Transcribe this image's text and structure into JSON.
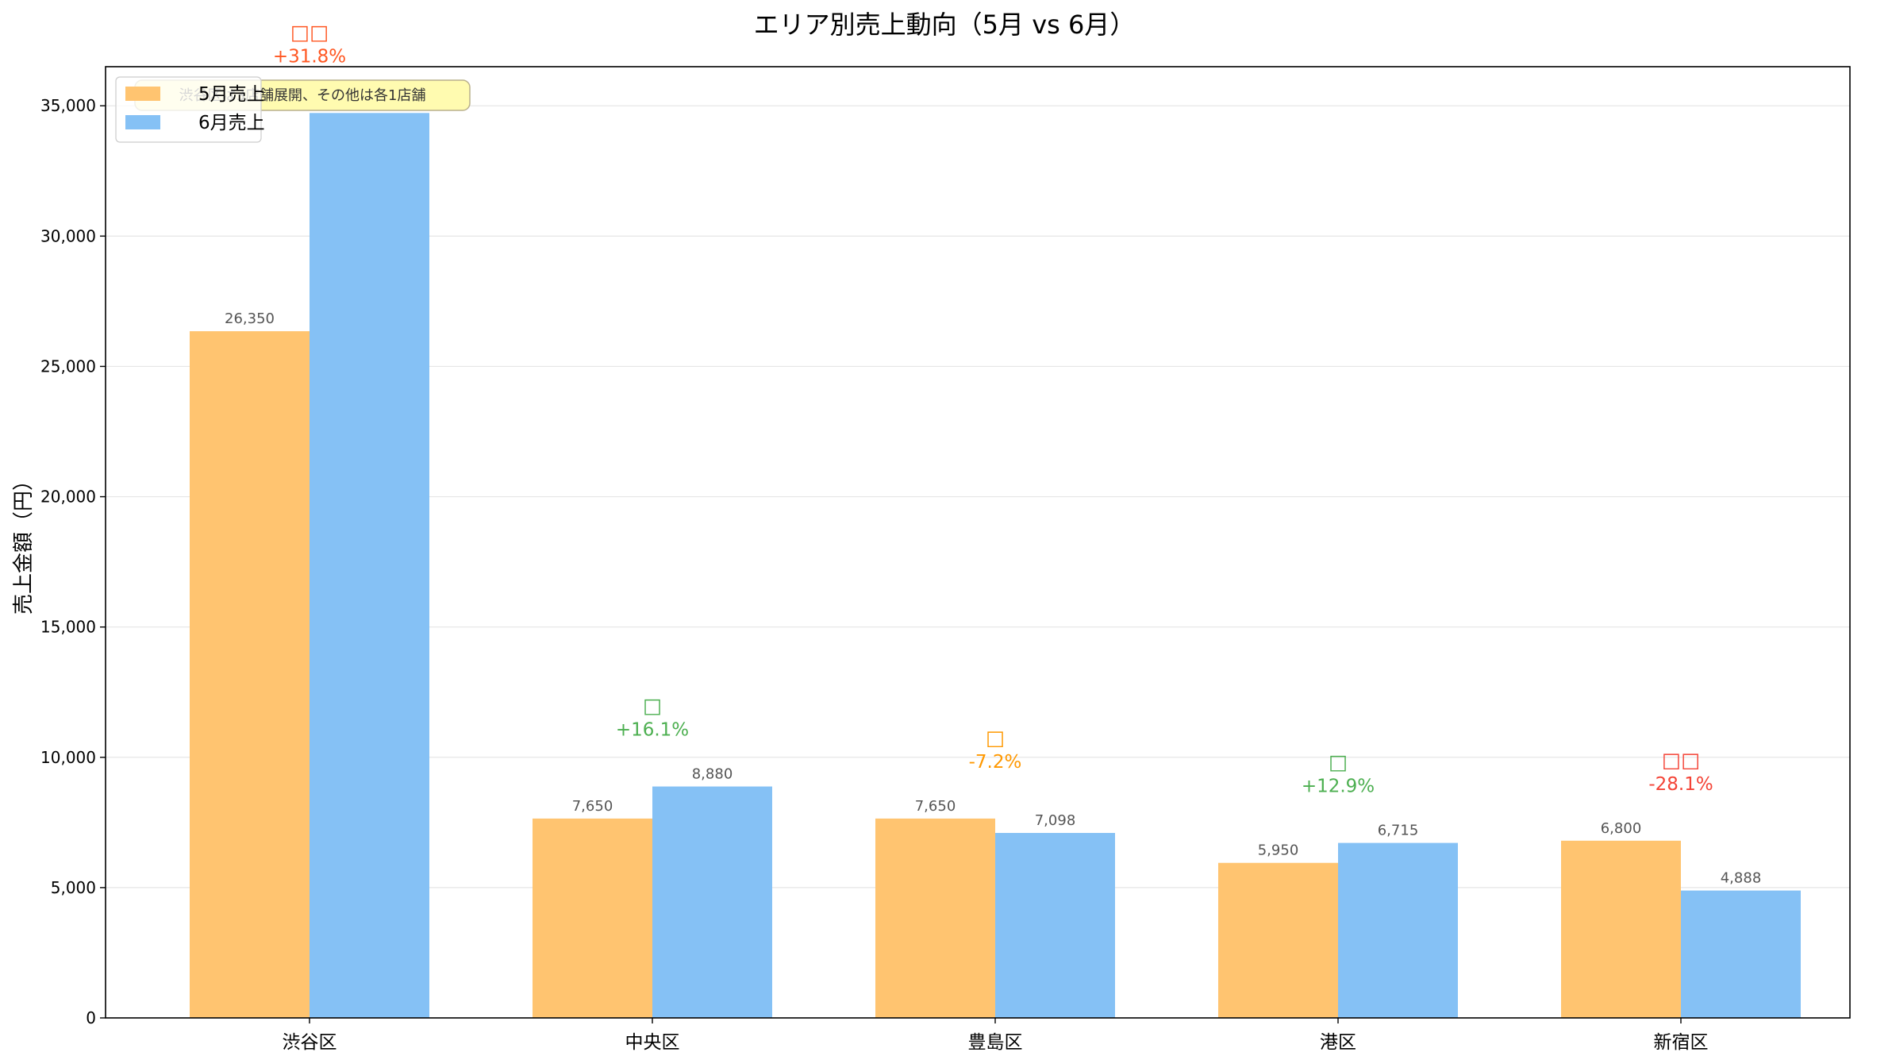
{
  "chart_data": {
    "type": "bar",
    "title": "エリア別売上動向（5月 vs 6月）",
    "ylabel": "売上金額（円）",
    "xlabel": "",
    "ylim": [
      0,
      36500
    ],
    "yticks": [
      0,
      5000,
      10000,
      15000,
      20000,
      25000,
      30000,
      35000
    ],
    "ytick_labels": [
      "0",
      "5,000",
      "10,000",
      "15,000",
      "20,000",
      "25,000",
      "30,000",
      "35,000"
    ],
    "grid": "y",
    "legend_position": "top-left",
    "categories": [
      "渋谷区",
      "中央区",
      "豊島区",
      "港区",
      "新宿区"
    ],
    "series": [
      {
        "name": "5月売上",
        "color": "#ffc470",
        "values": [
          26350,
          7650,
          7650,
          5950,
          6800
        ],
        "labels": [
          "26,350",
          "7,650",
          "7,650",
          "5,950",
          "6,800"
        ]
      },
      {
        "name": "6月売上",
        "color": "#85c1f5",
        "values": [
          34724,
          8880,
          7098,
          6715,
          4888
        ],
        "labels": [
          "34,724",
          "8,880",
          "7,098",
          "6,715",
          "4,888"
        ]
      }
    ],
    "changes": [
      {
        "label": "+31.8%",
        "symbol": "☐☐",
        "color": "#ff5722"
      },
      {
        "label": "+16.1%",
        "symbol": "☐",
        "color": "#4caf50"
      },
      {
        "label": "-7.2%",
        "symbol": "☐",
        "color": "#ff9800"
      },
      {
        "label": "+12.9%",
        "symbol": "☐",
        "color": "#4caf50"
      },
      {
        "label": "-28.1%",
        "symbol": "☐☐",
        "color": "#f44336"
      }
    ],
    "annotation": "渋谷区は3店舗展開、その他は各1店舗"
  }
}
